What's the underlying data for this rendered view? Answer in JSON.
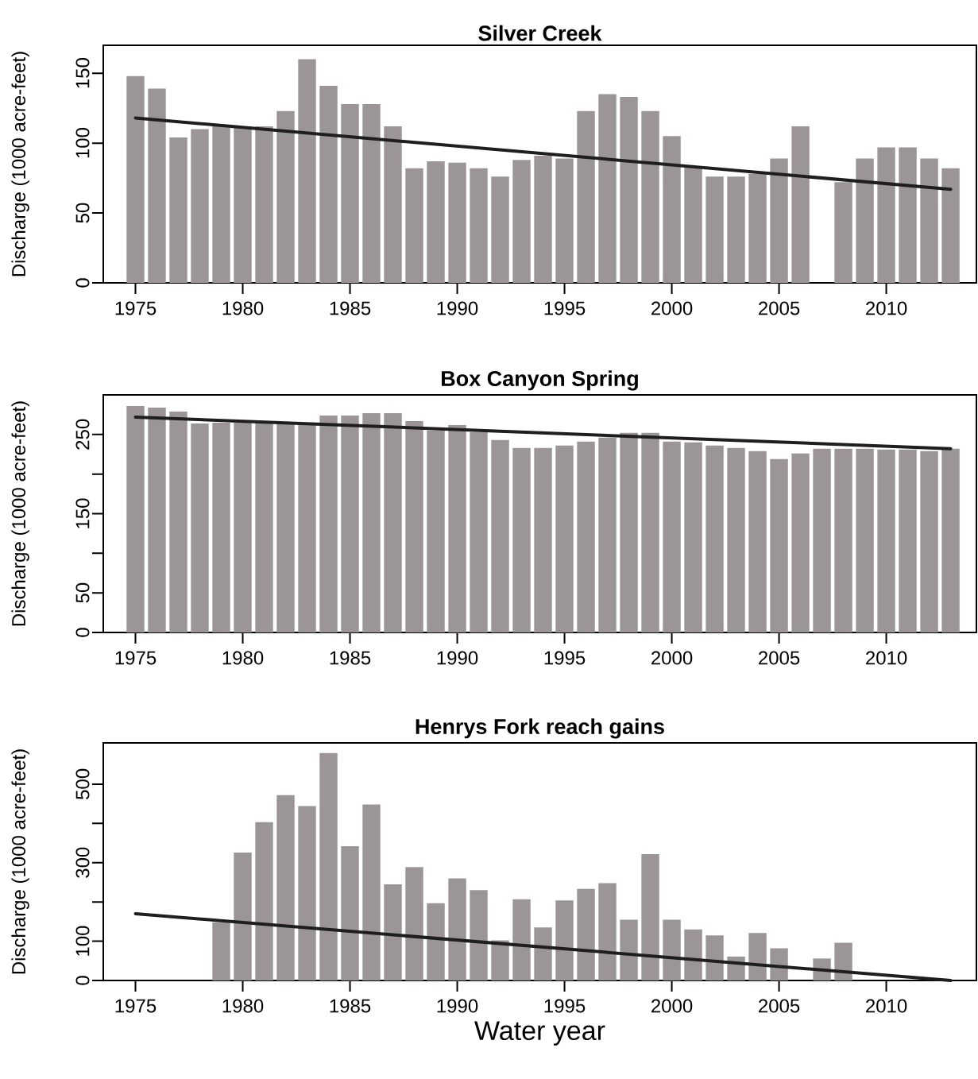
{
  "chart_data": [
    {
      "type": "bar",
      "title": "Silver Creek",
      "ylabel": "Discharge (1000 acre-feet)",
      "x": [
        1975,
        1976,
        1977,
        1978,
        1979,
        1980,
        1981,
        1982,
        1983,
        1984,
        1985,
        1986,
        1987,
        1988,
        1989,
        1990,
        1991,
        1992,
        1993,
        1994,
        1995,
        1996,
        1997,
        1998,
        1999,
        2000,
        2001,
        2002,
        2003,
        2004,
        2005,
        2006,
        2007,
        2008,
        2009,
        2010,
        2011,
        2012,
        2013
      ],
      "xlim": [
        1973.5,
        2014.2
      ],
      "xticks": [
        1975,
        1980,
        1985,
        1990,
        1995,
        2000,
        2005,
        2010
      ],
      "ylim": [
        0,
        170
      ],
      "yticks": [
        0,
        50,
        100,
        150
      ],
      "series": [
        {
          "color": "#9b9597",
          "values": [
            148,
            139,
            104,
            110,
            113,
            112,
            112,
            123,
            160,
            141,
            128,
            128,
            112,
            82,
            87,
            86,
            82,
            76,
            88,
            91,
            89,
            123,
            135,
            133,
            123,
            105,
            83,
            76,
            76,
            78,
            89,
            112,
            null,
            72,
            89,
            97,
            97,
            89,
            82
          ]
        },
        {
          "type": "line",
          "color": "#1e1e1e",
          "x": [
            1975,
            2013
          ],
          "values": [
            118,
            67
          ]
        }
      ]
    },
    {
      "type": "bar",
      "title": "Box Canyon Spring",
      "ylabel": "Discharge (1000 acre-feet)",
      "x": [
        1975,
        1976,
        1977,
        1978,
        1979,
        1980,
        1981,
        1982,
        1983,
        1984,
        1985,
        1986,
        1987,
        1988,
        1989,
        1990,
        1991,
        1992,
        1993,
        1994,
        1995,
        1996,
        1997,
        1998,
        1999,
        2000,
        2001,
        2002,
        2003,
        2004,
        2005,
        2006,
        2007,
        2008,
        2009,
        2010,
        2011,
        2012,
        2013
      ],
      "xlim": [
        1973.5,
        2014.2
      ],
      "xticks": [
        1975,
        1980,
        1985,
        1990,
        1995,
        2000,
        2005,
        2010
      ],
      "ylim": [
        0,
        300
      ],
      "yticks": [
        0,
        50,
        {
          "value": 100,
          "label": null
        },
        150,
        {
          "value": 200,
          "label": null
        },
        250
      ],
      "series": [
        {
          "color": "#9b9597",
          "values": [
            286,
            284,
            279,
            264,
            265,
            265,
            265,
            264,
            263,
            274,
            274,
            277,
            277,
            267,
            255,
            262,
            253,
            243,
            233,
            233,
            236,
            241,
            246,
            252,
            252,
            241,
            240,
            236,
            233,
            229,
            219,
            226,
            232,
            232,
            232,
            231,
            231,
            229,
            232
          ]
        },
        {
          "type": "line",
          "color": "#1e1e1e",
          "x": [
            1975,
            2013
          ],
          "values": [
            272,
            232
          ]
        }
      ]
    },
    {
      "type": "bar",
      "title": "Henrys Fork reach gains",
      "ylabel": "Discharge (1000 acre-feet)",
      "xlabel": "Water year",
      "xlim": [
        1973.5,
        2014.2
      ],
      "xticks": [
        1975,
        1980,
        1985,
        1990,
        1995,
        2000,
        2005,
        2010
      ],
      "ylim": [
        0,
        605
      ],
      "yticks": [
        0,
        100,
        {
          "value": 200,
          "label": null
        },
        300,
        {
          "value": 400,
          "label": null
        },
        500
      ],
      "series": [
        {
          "color": "#9b9597",
          "x": [
            1979,
            1980,
            1981,
            1982,
            1983,
            1984,
            1985,
            1986,
            1987,
            1988,
            1989,
            1990,
            1991,
            1992,
            1993,
            1994,
            1995,
            1996,
            1997,
            1998,
            1999,
            2000,
            2001,
            2002,
            2003,
            2004,
            2005,
            2007,
            2008
          ],
          "values": [
            148,
            326,
            403,
            472,
            444,
            579,
            342,
            448,
            245,
            289,
            197,
            260,
            230,
            102,
            207,
            135,
            204,
            233,
            248,
            155,
            322,
            155,
            130,
            115,
            61,
            121,
            82,
            56,
            96
          ]
        },
        {
          "type": "line",
          "color": "#1e1e1e",
          "x": [
            1975,
            2013
          ],
          "values": [
            170,
            0
          ]
        }
      ]
    }
  ]
}
